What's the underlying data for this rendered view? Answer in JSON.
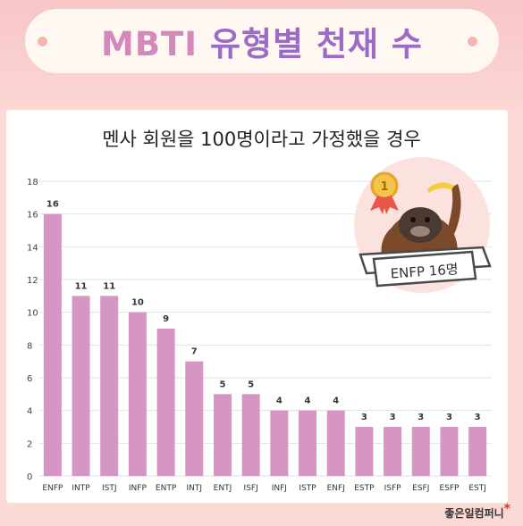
{
  "header": {
    "title_accent": "MBTI",
    "title_rest": " 유형별 천재 수"
  },
  "subtitle": "멘사 회원을 100명이라고 가정했을 경우",
  "badge": {
    "medal_number": "1",
    "ribbon_text": "ENFP 16명"
  },
  "brand": {
    "name": "좋은일컴퍼니",
    "mark": "*"
  },
  "colors": {
    "bar": "#d696c4",
    "grid": "#e2e2e2",
    "title_purple": "#9b6cc6",
    "title_pink": "#d38aba"
  },
  "chart_data": {
    "type": "bar",
    "categories": [
      "ENFP",
      "INTP",
      "ISTJ",
      "INFP",
      "ENTP",
      "INTJ",
      "ENTJ",
      "ISFJ",
      "INFJ",
      "ISTP",
      "ENFJ",
      "ESTP",
      "ISFP",
      "ESFJ",
      "ESFP",
      "ESTJ"
    ],
    "values": [
      16,
      11,
      11,
      10,
      9,
      7,
      5,
      5,
      4,
      4,
      4,
      3,
      3,
      3,
      3,
      3
    ],
    "yticks": [
      0,
      2,
      4,
      6,
      8,
      10,
      12,
      14,
      16,
      18
    ],
    "ylim": [
      0,
      18
    ],
    "title": "멘사 회원을 100명이라고 가정했을 경우",
    "xlabel": "",
    "ylabel": "",
    "grid": true,
    "data_labels": true
  }
}
